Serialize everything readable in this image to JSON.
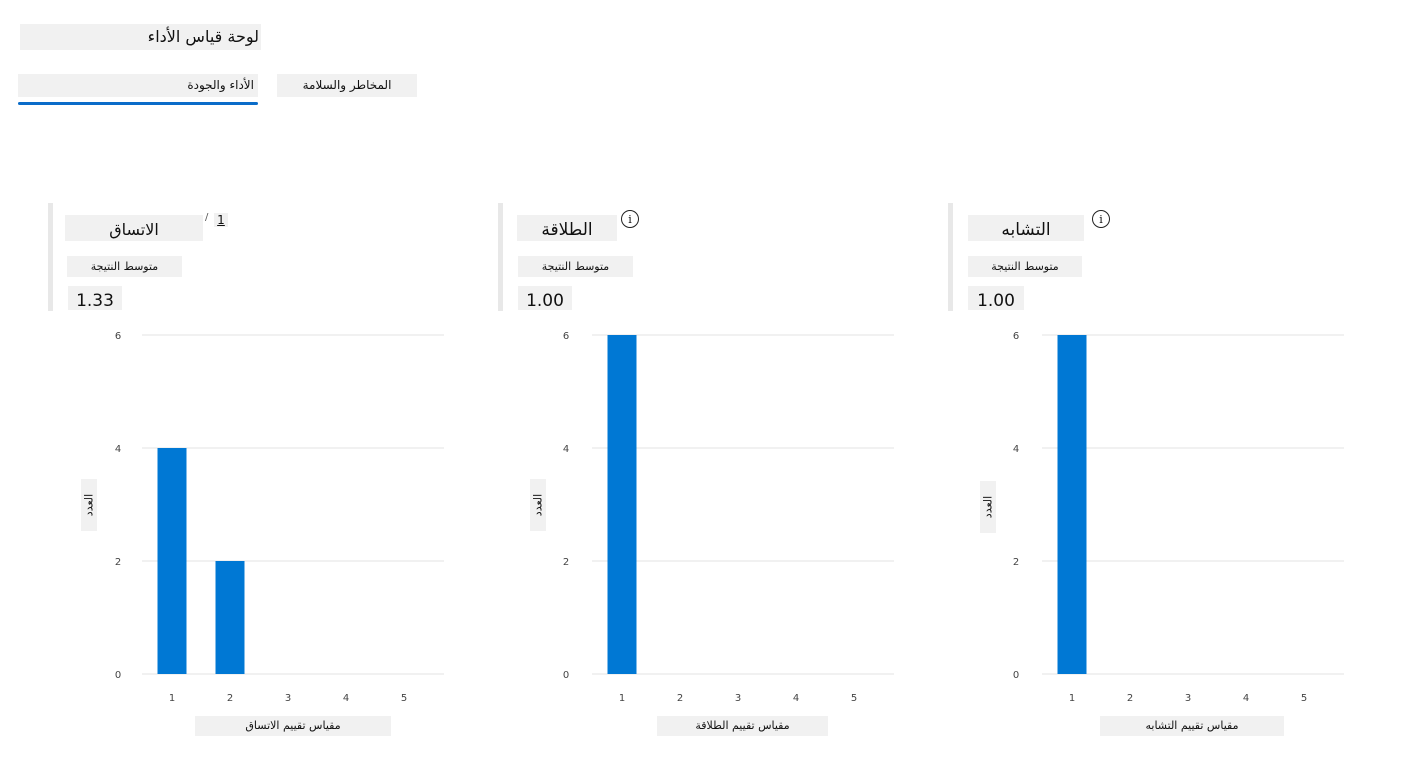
{
  "page_title": "لوحة قياس الأداء",
  "tabs": [
    {
      "label": "الأداء والجودة",
      "selected": true
    },
    {
      "label": "المخاطر والسلامة",
      "selected": false
    }
  ],
  "metrics": [
    {
      "title": "الاتساق",
      "subtitle": "متوسط النتيجة",
      "value": "1.33",
      "footnote": "1",
      "footnote_sep": "/"
    },
    {
      "title": "الطلاقة",
      "subtitle": "متوسط النتيجة",
      "value": "1.00",
      "info": "i"
    },
    {
      "title": "التشابه",
      "subtitle": "متوسط النتيجة",
      "value": "1.00",
      "info": "i"
    }
  ],
  "colors": {
    "bar": "#0078d4",
    "grid": "#e3e3e3",
    "tab_indicator": "#0a6cc9"
  },
  "chart_data": [
    {
      "type": "bar",
      "categories": [
        "1",
        "2",
        "3",
        "4",
        "5"
      ],
      "values": [
        4,
        2,
        0,
        0,
        0
      ],
      "yticks": [
        0,
        2,
        4,
        6
      ],
      "ylim": [
        0,
        6
      ],
      "xlabel": "مقياس تقييم الاتساق",
      "ylabel": "العدد",
      "grid": true
    },
    {
      "type": "bar",
      "categories": [
        "1",
        "2",
        "3",
        "4",
        "5"
      ],
      "values": [
        6,
        0,
        0,
        0,
        0
      ],
      "yticks": [
        0,
        2,
        4,
        6
      ],
      "ylim": [
        0,
        6
      ],
      "xlabel": "مقياس تقييم الطلاقة",
      "ylabel": "العدد",
      "grid": true
    },
    {
      "type": "bar",
      "categories": [
        "1",
        "2",
        "3",
        "4",
        "5"
      ],
      "values": [
        6,
        0,
        0,
        0,
        0
      ],
      "yticks": [
        0,
        2,
        4,
        6
      ],
      "ylim": [
        0,
        6
      ],
      "xlabel": "مقياس تقييم التشابه",
      "ylabel": "العدد",
      "grid": true
    }
  ]
}
